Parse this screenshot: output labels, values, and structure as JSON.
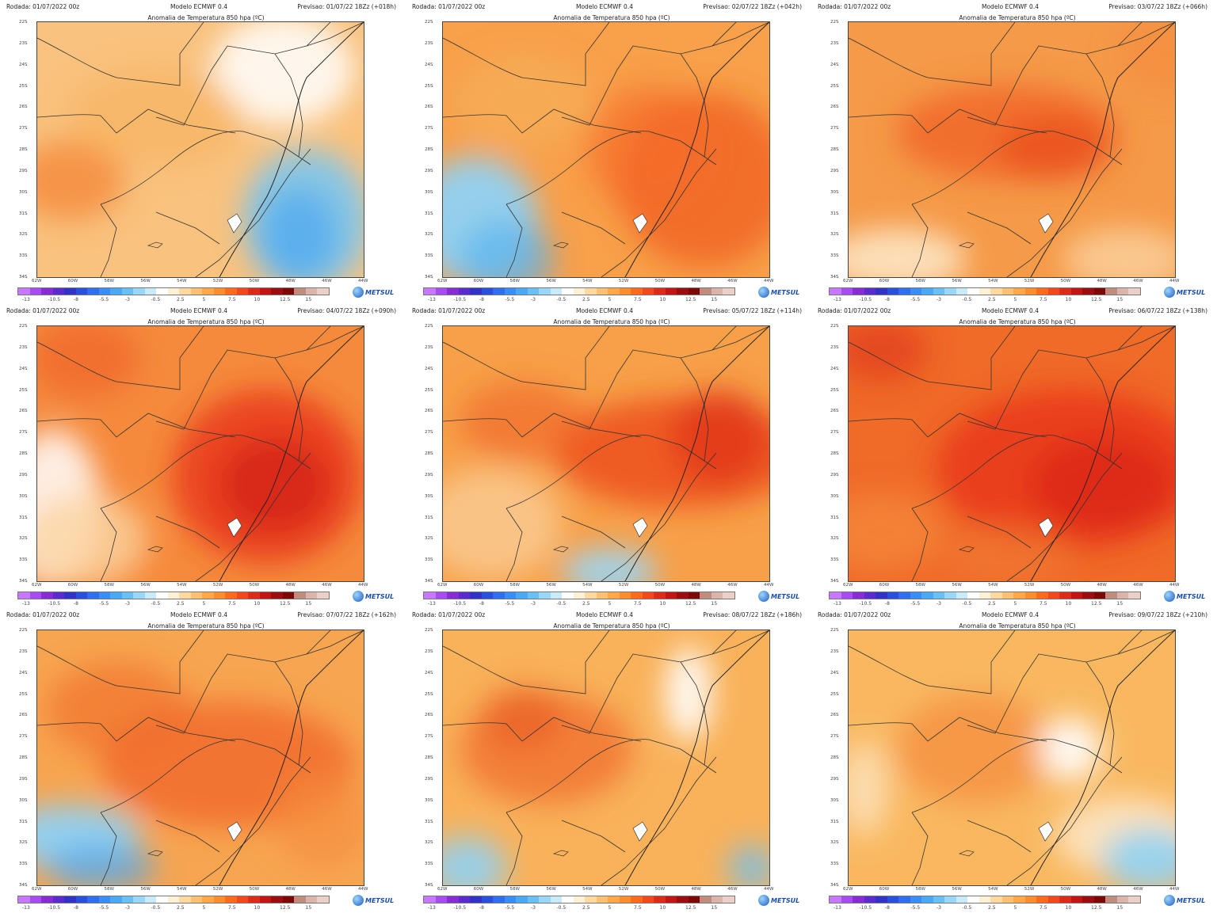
{
  "common": {
    "run": "Rodada: 01/07/2022 00z",
    "model": "Modelo ECMWF 0.4",
    "title": "Anomalia de Temperatura 850 hpa (ºC)",
    "logo": "METSUL",
    "lat_labels": [
      "22S",
      "23S",
      "24S",
      "25S",
      "26S",
      "27S",
      "28S",
      "29S",
      "30S",
      "31S",
      "32S",
      "33S",
      "34S"
    ],
    "lon_labels": [
      "62W",
      "60W",
      "58W",
      "56W",
      "54W",
      "52W",
      "50W",
      "48W",
      "46W",
      "44W"
    ],
    "colorbar_labels": [
      "-13",
      "-10.5",
      "-8",
      "-5.5",
      "-3",
      "-0.5",
      "2.5",
      "5",
      "7.5",
      "10",
      "12.5",
      "15"
    ],
    "colorbar_colors": [
      "#c878ff",
      "#a84bf0",
      "#8a2bd6",
      "#5a2bd0",
      "#3232c8",
      "#2850e0",
      "#2f6ef0",
      "#3c8cf5",
      "#4aa8f7",
      "#69c0f5",
      "#9ad6f7",
      "#c8ebfa",
      "#ffffff",
      "#fff0d6",
      "#ffd9a0",
      "#ffc070",
      "#ffa84a",
      "#ff8c2a",
      "#ff6a1a",
      "#f5481a",
      "#e02a18",
      "#c41414",
      "#9c0e0e",
      "#7c0808",
      "#c08c80",
      "#dcb4aa",
      "#ecd0c8"
    ]
  },
  "panels": [
    {
      "forecast": "Previsao: 01/07/22 18Zz (+018h)"
    },
    {
      "forecast": "Previsao: 02/07/22 18Zz (+042h)"
    },
    {
      "forecast": "Previsao: 03/07/22 18Zz (+066h)"
    },
    {
      "forecast": "Previsao: 04/07/22 18Zz (+090h)"
    },
    {
      "forecast": "Previsao: 05/07/22 18Zz (+114h)"
    },
    {
      "forecast": "Previsao: 06/07/22 18Zz (+138h)"
    },
    {
      "forecast": "Previsao: 07/07/22 18Zz (+162h)"
    },
    {
      "forecast": "Previsao: 08/07/22 18Zz (+186h)"
    },
    {
      "forecast": "Previsao: 09/07/22 18Zz (+210h)"
    }
  ]
}
